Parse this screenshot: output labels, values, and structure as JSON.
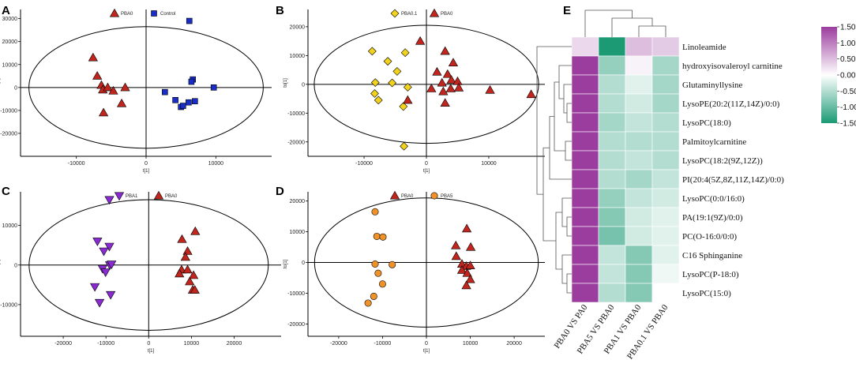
{
  "colors": {
    "PBA0": "#c0251e",
    "Control": "#1a2ec7",
    "PBA0.1": "#f2d21c",
    "PBA1": "#8a2bd1",
    "PBA5": "#f0922a",
    "heat_low": "#1b9a74",
    "heat_mid": "#ffffff",
    "heat_high": "#9b3d9e"
  },
  "chart_data": [
    {
      "id": "A",
      "panel_label": "A",
      "type": "scatter",
      "xlabel": "t[1]",
      "ylabel": "to[1]",
      "xlim": [
        -18000,
        18000
      ],
      "ylim": [
        -30000,
        34000
      ],
      "xticks": [
        -10000,
        0,
        10000
      ],
      "xtick_labels": [
        "-10000",
        "0",
        "10000"
      ],
      "yticks": [
        -20000,
        -10000,
        0,
        10000,
        20000,
        30000
      ],
      "ytick_labels": [
        "-20000",
        "-10000",
        "0",
        "10000",
        "20000",
        "30000"
      ],
      "ellipse": {
        "rx": 16800,
        "ry": 26500
      },
      "series": [
        {
          "name": "PBA0",
          "marker": "triangle",
          "color_key": "PBA0",
          "points": [
            [
              -7600,
              13000
            ],
            [
              -7000,
              5000
            ],
            [
              -6400,
              1000
            ],
            [
              -6200,
              -1000
            ],
            [
              -5500,
              0
            ],
            [
              -4700,
              -1500
            ],
            [
              -6100,
              -11000
            ],
            [
              -3500,
              -7000
            ],
            [
              -3000,
              0
            ]
          ]
        },
        {
          "name": "Control",
          "marker": "square",
          "color_key": "Control",
          "points": [
            [
              6200,
              29000
            ],
            [
              6700,
              3500
            ],
            [
              6500,
              2500
            ],
            [
              2700,
              -2000
            ],
            [
              4200,
              -5500
            ],
            [
              5000,
              -8500
            ],
            [
              5300,
              -8000
            ],
            [
              6100,
              -6500
            ],
            [
              7000,
              -6000
            ],
            [
              9700,
              0
            ]
          ]
        }
      ]
    },
    {
      "id": "B",
      "panel_label": "B",
      "type": "scatter",
      "xlabel": "t[1]",
      "ylabel": "to[1]",
      "xlim": [
        -19000,
        19000
      ],
      "ylim": [
        -25000,
        26000
      ],
      "xticks": [
        -10000,
        0,
        10000
      ],
      "xtick_labels": [
        "-10000",
        "0",
        "10000"
      ],
      "yticks": [
        -20000,
        -10000,
        0,
        10000,
        20000
      ],
      "ytick_labels": [
        "-20000",
        "-10000",
        "0",
        "10000",
        "20000"
      ],
      "ellipse": {
        "rx": 18000,
        "ry": 20500
      },
      "series": [
        {
          "name": "PBA0.1",
          "marker": "diamond",
          "color_key": "PBA0.1",
          "points": [
            [
              -8700,
              11500
            ],
            [
              -3400,
              11000
            ],
            [
              -6200,
              8000
            ],
            [
              -4700,
              4500
            ],
            [
              -8200,
              600
            ],
            [
              -5500,
              500
            ],
            [
              -8300,
              -3200
            ],
            [
              -3000,
              -1000
            ],
            [
              -7700,
              -5500
            ],
            [
              -3700,
              -7700
            ],
            [
              -3600,
              -21500
            ]
          ]
        },
        {
          "name": "PBA0",
          "marker": "triangle",
          "color_key": "PBA0",
          "points": [
            [
              -1000,
              15000
            ],
            [
              3000,
              11500
            ],
            [
              4300,
              7500
            ],
            [
              1700,
              4300
            ],
            [
              3400,
              3500
            ],
            [
              4000,
              1500
            ],
            [
              5000,
              1000
            ],
            [
              2500,
              500
            ],
            [
              800,
              -1500
            ],
            [
              2700,
              -2500
            ],
            [
              3900,
              -1500
            ],
            [
              5200,
              -1200
            ],
            [
              10200,
              -2000
            ],
            [
              16800,
              -3500
            ],
            [
              3000,
              -6500
            ],
            [
              -3000,
              -5500
            ]
          ]
        }
      ]
    },
    {
      "id": "C",
      "panel_label": "C",
      "type": "scatter",
      "xlabel": "t[1]",
      "ylabel": "to[1]",
      "xlim": [
        -30000,
        31000
      ],
      "ylim": [
        -18000,
        18500
      ],
      "xticks": [
        -20000,
        -10000,
        0,
        10000,
        20000
      ],
      "xtick_labels": [
        "-20000",
        "-10000",
        "0",
        "10000",
        "20000"
      ],
      "yticks": [
        -10000,
        0,
        10000
      ],
      "ytick_labels": [
        "-10000",
        "0",
        "10000"
      ],
      "ellipse": {
        "rx": 28000,
        "ry": 16500
      },
      "series": [
        {
          "name": "PBA1",
          "marker": "triangle-down",
          "color_key": "PBA1",
          "points": [
            [
              -9200,
              16500
            ],
            [
              -12000,
              6000
            ],
            [
              -9200,
              4700
            ],
            [
              -10500,
              3500
            ],
            [
              -9100,
              0
            ],
            [
              -8700,
              200
            ],
            [
              -10800,
              -900
            ],
            [
              -10100,
              -1800
            ],
            [
              -12600,
              -5500
            ],
            [
              -11500,
              -9500
            ],
            [
              -8900,
              -7500
            ]
          ]
        },
        {
          "name": "PBA0",
          "marker": "triangle",
          "color_key": "PBA0",
          "points": [
            [
              10900,
              8500
            ],
            [
              7800,
              6500
            ],
            [
              9100,
              3500
            ],
            [
              8600,
              2000
            ],
            [
              7700,
              -1200
            ],
            [
              9100,
              -1200
            ],
            [
              7200,
              -2200
            ],
            [
              10500,
              -2600
            ],
            [
              9600,
              -4200
            ],
            [
              10300,
              -6300
            ],
            [
              10800,
              -6300
            ]
          ]
        }
      ]
    },
    {
      "id": "D",
      "panel_label": "D",
      "type": "scatter",
      "xlabel": "t[1]",
      "ylabel": "to[1]",
      "xlim": [
        -27000,
        27000
      ],
      "ylim": [
        -24000,
        23000
      ],
      "xticks": [
        -20000,
        -10000,
        0,
        10000,
        20000
      ],
      "xtick_labels": [
        "-20000",
        "-10000",
        "0",
        "10000",
        "20000"
      ],
      "yticks": [
        -20000,
        -10000,
        0,
        10000,
        20000
      ],
      "ytick_labels": [
        "-20000",
        "-10000",
        "0",
        "10000",
        "20000"
      ],
      "ellipse": {
        "rx": 25500,
        "ry": 21000
      },
      "series": [
        {
          "name": "PBA0",
          "marker": "triangle",
          "color_key": "PBA0",
          "points": [
            [
              9200,
              11000
            ],
            [
              6700,
              5500
            ],
            [
              10100,
              5000
            ],
            [
              6800,
              2000
            ],
            [
              8100,
              -500
            ],
            [
              9100,
              -1200
            ],
            [
              10000,
              -1000
            ],
            [
              8100,
              -2500
            ],
            [
              9300,
              -3500
            ],
            [
              10000,
              -5500
            ],
            [
              9100,
              -7500
            ]
          ]
        },
        {
          "name": "PBA5",
          "marker": "circle",
          "color_key": "PBA5",
          "points": [
            [
              -11700,
              16500
            ],
            [
              -11300,
              8500
            ],
            [
              -9900,
              8300
            ],
            [
              -11700,
              -500
            ],
            [
              -7800,
              -700
            ],
            [
              -11000,
              -3500
            ],
            [
              -10000,
              -7000
            ],
            [
              -12000,
              -11000
            ],
            [
              -13300,
              -13200
            ]
          ]
        }
      ]
    },
    {
      "id": "E",
      "panel_label": "E",
      "type": "heatmap",
      "rows": [
        "Linoleamide",
        "hydroxyisovaleroyl carnitine",
        "Glutaminyllysine",
        "LysoPE(20:2(11Z,14Z)/0:0)",
        "LysoPC(18:0)",
        "Palmitoylcarnitine",
        "LysoPC(18:2(9Z,12Z))",
        "PI(20:4(5Z,8Z,11Z,14Z)/0:0)",
        "LysoPC(0:0/16:0)",
        "PA(19:1(9Z)/0:0)",
        "PC(O-16:0/0:0)",
        "C16 Sphinganine",
        "LysoPC(P-18:0)",
        "LysoPC(15:0)"
      ],
      "columns": [
        "PBA0 VS PA0",
        "PBA5 VS PBA0",
        "PBA1 VS PBA0",
        "PBA0.1 VS PBA0"
      ],
      "values": [
        [
          0.3,
          -1.5,
          0.5,
          0.4
        ],
        [
          1.5,
          -0.7,
          0.1,
          -0.6
        ],
        [
          1.5,
          -0.5,
          -0.2,
          -0.6
        ],
        [
          1.5,
          -0.5,
          -0.3,
          -0.6
        ],
        [
          1.5,
          -0.6,
          -0.4,
          -0.5
        ],
        [
          1.5,
          -0.5,
          -0.5,
          -0.5
        ],
        [
          1.5,
          -0.5,
          -0.4,
          -0.5
        ],
        [
          1.5,
          -0.5,
          -0.6,
          -0.4
        ],
        [
          1.5,
          -0.7,
          -0.4,
          -0.3
        ],
        [
          1.5,
          -0.8,
          -0.3,
          -0.2
        ],
        [
          1.5,
          -0.9,
          -0.3,
          -0.2
        ],
        [
          1.5,
          -0.4,
          -0.8,
          -0.2
        ],
        [
          1.5,
          -0.4,
          -0.8,
          -0.1
        ],
        [
          1.5,
          -0.5,
          -0.8,
          0.0
        ]
      ],
      "colorbar": {
        "min": -1.5,
        "max": 1.5,
        "ticks": [
          1.5,
          1.0,
          0.5,
          0.0,
          -0.5,
          -1.0,
          -1.5
        ],
        "tick_labels": [
          "1.50",
          "1.00",
          "0.50",
          "0.00",
          "-0.50",
          "-1.00",
          "-1.50"
        ]
      }
    }
  ]
}
